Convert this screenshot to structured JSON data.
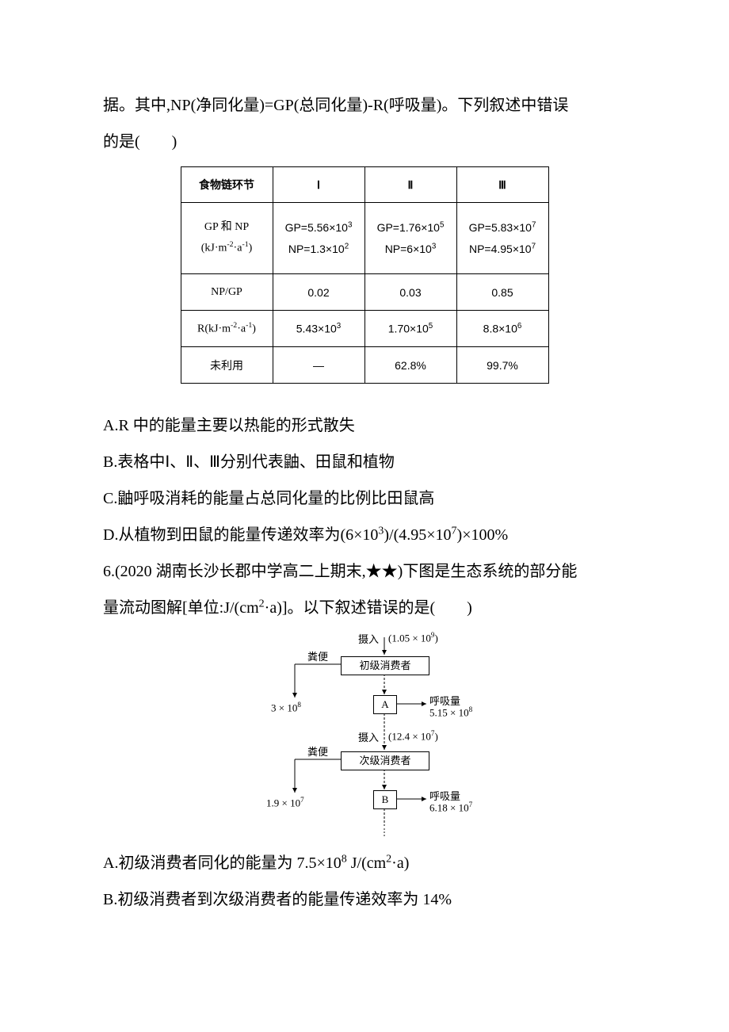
{
  "intro": {
    "l1": "据。其中,NP(净同化量)=GP(总同化量)-R(呼吸量)。下列叙述中错误",
    "l2": "的是(　　)"
  },
  "table": {
    "headers": [
      "食物链环节",
      "Ⅰ",
      "Ⅱ",
      "Ⅲ"
    ],
    "row_gp_np_label_1": "GP 和 NP",
    "row_gp_np_label_2_html": "(kJ·m<span class='sup'>-2</span>·a<span class='sup'>-1</span>)",
    "gp_np": {
      "c1_gp_html": "GP=5.56×10<span class='sup'>3</span>",
      "c1_np_html": "NP=1.3×10<span class='sup'>2</span>",
      "c2_gp_html": "GP=1.76×10<span class='sup'>5</span>",
      "c2_np_html": "NP=6×10<span class='sup'>3</span>",
      "c3_gp_html": "GP=5.83×10<span class='sup'>7</span>",
      "c3_np_html": "NP=4.95×10<span class='sup'>7</span>"
    },
    "row_npgp_label": "NP/GP",
    "npgp": [
      "0.02",
      "0.03",
      "0.85"
    ],
    "row_r_label_html": "R(kJ·m<span class='sup'>-2</span>·a<span class='sup'>-1</span>)",
    "rvals_html": [
      "5.43×10<span class='sup'>3</span>",
      "1.70×10<span class='sup'>5</span>",
      "8.8×10<span class='sup'>6</span>"
    ],
    "row_unused_label": "未利用",
    "unused": [
      "—",
      "62.8%",
      "99.7%"
    ]
  },
  "opts5": {
    "A": "A.R 中的能量主要以热能的形式散失",
    "B": "B.表格中Ⅰ、Ⅱ、Ⅲ分别代表鼬、田鼠和植物",
    "C": "C.鼬呼吸消耗的能量占总同化量的比例比田鼠高",
    "D_html": "D.从植物到田鼠的能量传递效率为(6×10<span class='sup'>3</span>)/(4.95×10<span class='sup'>7</span>)×100%"
  },
  "q6": {
    "l1": "6.(2020 湖南长沙长郡中学高二上期末,★★)下图是生态系统的部分能",
    "l2_html": "量流动图解[单位:J/(cm<span class='sup'>2</span>·a)]。以下叙述错误的是(　　)"
  },
  "diagram": {
    "intake_top": "摄入",
    "intake_top_val_html": "(1.05 × 10<span class='sup'>9</span>)",
    "feces": "粪便",
    "consumer1": "初级消费者",
    "left1_html": "3 × 10<span class='sup'>8</span>",
    "resp": "呼吸量",
    "resp1_val_html": "5.15 × 10<span class='sup'>8</span>",
    "A": "A",
    "intake_mid": "摄入",
    "intake_mid_val_html": "(12.4 × 10<span class='sup'>7</span>)",
    "consumer2": "次级消费者",
    "left2_html": "1.9 × 10<span class='sup'>7</span>",
    "resp2_val_html": "6.18 × 10<span class='sup'>7</span>",
    "B": "B"
  },
  "opts6": {
    "A_html": "A.初级消费者同化的能量为 7.5×10<span class='sup'>8</span> J/(cm<span class='sup'>2</span>·a)",
    "B": "B.初级消费者到次级消费者的能量传递效率为 14%"
  }
}
